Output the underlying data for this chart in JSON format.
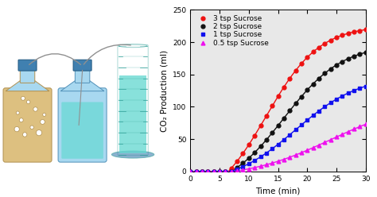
{
  "title": "",
  "xlabel": "Time (min)",
  "ylabel": "CO₂ Production (ml)",
  "xlim": [
    0,
    30
  ],
  "ylim": [
    0,
    250
  ],
  "xticks": [
    0,
    5,
    10,
    15,
    20,
    25,
    30
  ],
  "yticks": [
    0,
    50,
    100,
    150,
    200,
    250
  ],
  "series": [
    {
      "label": "3 tsp Sucrose",
      "color": "#ee1111",
      "marker": "o",
      "lag": 6.5,
      "vmax": 280,
      "k": 0.22,
      "t_mid": 13
    },
    {
      "label": "2 tsp Sucrose",
      "color": "#111111",
      "marker": "o",
      "lag": 7.0,
      "vmax": 230,
      "k": 0.2,
      "t_mid": 16
    },
    {
      "label": "1 tsp Sucrose",
      "color": "#1111ee",
      "marker": "s",
      "lag": 7.0,
      "vmax": 170,
      "k": 0.18,
      "t_mid": 18
    },
    {
      "label": "0.5 tsp Sucrose",
      "color": "#ee11ee",
      "marker": "^",
      "lag": 7.5,
      "vmax": 120,
      "k": 0.14,
      "t_mid": 24
    }
  ],
  "chart_bg": "#e8e8e8",
  "figure_bg": "#ffffff",
  "linewidth": 1.0,
  "markersize": 3.5,
  "legend_fontsize": 6.5,
  "axis_fontsize": 7.5,
  "tick_fontsize": 6.5,
  "diagram_colors": {
    "bottle_fill": "#a8d8f0",
    "bottle_edge": "#5090b8",
    "yeast_fill": "#ddc080",
    "yeast_edge": "#b09050",
    "cylinder_fill": "#60d8d0",
    "cylinder_edge": "#30a098",
    "cap_color": "#4080b0",
    "tube_color": "#909090",
    "bubble_edge": "#b09050"
  }
}
